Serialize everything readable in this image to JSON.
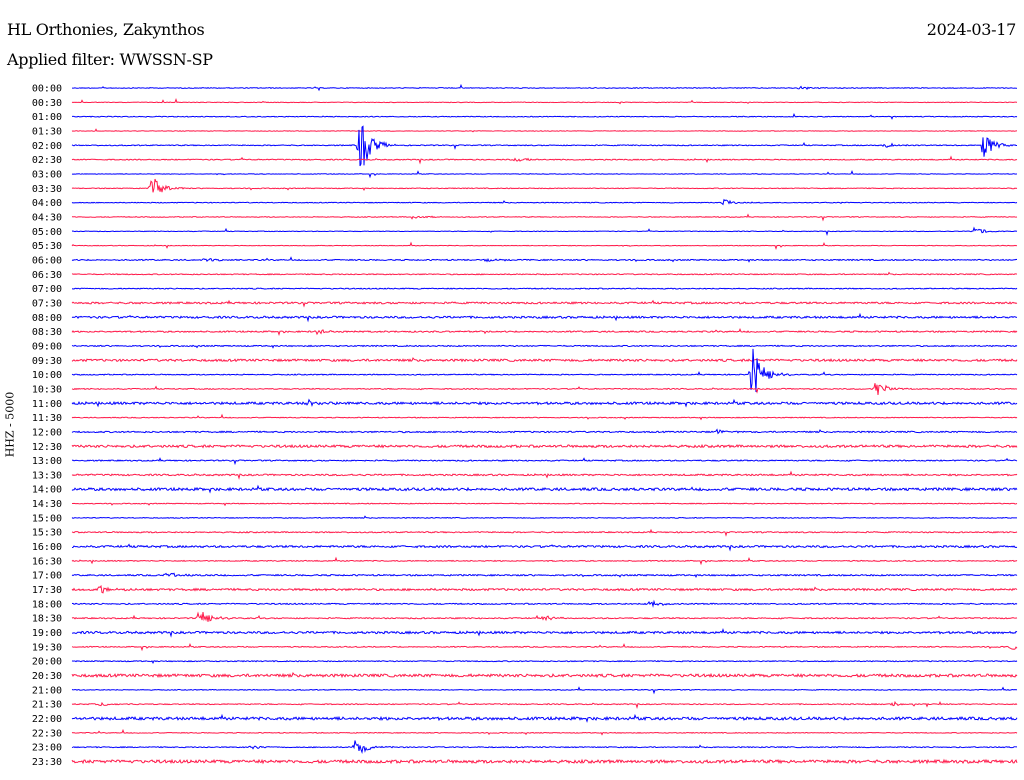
{
  "header": {
    "station": "HL Orthonies, Zakynthos",
    "date": "2024-03-17",
    "filter": "Applied filter: WWSSN-SP"
  },
  "chart_data": {
    "type": "line",
    "title": "HL Orthonies, Zakynthos",
    "ylabel": "HHZ - 5000",
    "colors": {
      "even": "#0000ff",
      "odd": "#ff1a4a"
    },
    "rows": [
      "00:00",
      "00:30",
      "01:00",
      "01:30",
      "02:00",
      "02:30",
      "03:00",
      "03:30",
      "04:00",
      "04:30",
      "05:00",
      "05:30",
      "06:00",
      "06:30",
      "07:00",
      "07:30",
      "08:00",
      "08:30",
      "09:00",
      "09:30",
      "10:00",
      "10:30",
      "11:00",
      "11:30",
      "12:00",
      "12:30",
      "13:00",
      "13:30",
      "14:00",
      "14:30",
      "15:00",
      "15:30",
      "16:00",
      "16:30",
      "17:00",
      "17:30",
      "18:00",
      "18:30",
      "19:00",
      "19:30",
      "20:00",
      "20:30",
      "21:00",
      "21:30",
      "22:00",
      "22:30",
      "23:00",
      "23:30"
    ],
    "noise": [
      0.4,
      0.3,
      0.4,
      0.3,
      0.5,
      0.5,
      0.3,
      0.4,
      0.4,
      0.4,
      0.3,
      0.3,
      0.6,
      0.5,
      0.5,
      0.9,
      1.0,
      0.7,
      0.6,
      1.1,
      0.5,
      0.5,
      1.2,
      0.4,
      0.7,
      1.2,
      0.6,
      0.8,
      1.3,
      0.4,
      0.4,
      0.6,
      1.0,
      0.5,
      0.7,
      1.0,
      0.6,
      0.6,
      1.1,
      0.5,
      0.5,
      1.4,
      0.4,
      0.5,
      1.4,
      0.4,
      0.5,
      1.5
    ],
    "events": [
      {
        "row": 0,
        "t": 0.77,
        "amp": 2
      },
      {
        "row": 4,
        "t": 0.305,
        "amp": 30
      },
      {
        "row": 4,
        "t": 0.965,
        "amp": 14
      },
      {
        "row": 4,
        "t": 0.86,
        "amp": 3
      },
      {
        "row": 5,
        "t": 0.47,
        "amp": 3
      },
      {
        "row": 7,
        "t": 0.085,
        "amp": 12
      },
      {
        "row": 8,
        "t": 0.69,
        "amp": 4
      },
      {
        "row": 9,
        "t": 0.36,
        "amp": 2
      },
      {
        "row": 10,
        "t": 0.955,
        "amp": 4
      },
      {
        "row": 12,
        "t": 0.14,
        "amp": 2
      },
      {
        "row": 12,
        "t": 0.44,
        "amp": 2
      },
      {
        "row": 17,
        "t": 0.26,
        "amp": 3
      },
      {
        "row": 20,
        "t": 0.72,
        "amp": 28
      },
      {
        "row": 21,
        "t": 0.85,
        "amp": 9
      },
      {
        "row": 22,
        "t": 0.25,
        "amp": 3
      },
      {
        "row": 24,
        "t": 0.68,
        "amp": 3
      },
      {
        "row": 34,
        "t": 0.1,
        "amp": 3
      },
      {
        "row": 35,
        "t": 0.03,
        "amp": 4
      },
      {
        "row": 36,
        "t": 0.61,
        "amp": 5
      },
      {
        "row": 37,
        "t": 0.135,
        "amp": 10
      },
      {
        "row": 37,
        "t": 0.5,
        "amp": 3
      },
      {
        "row": 39,
        "t": 0.995,
        "amp": 3
      },
      {
        "row": 43,
        "t": 0.03,
        "amp": 2
      },
      {
        "row": 43,
        "t": 0.87,
        "amp": 2
      },
      {
        "row": 46,
        "t": 0.3,
        "amp": 10
      },
      {
        "row": 46,
        "t": 0.19,
        "amp": 2
      }
    ]
  }
}
